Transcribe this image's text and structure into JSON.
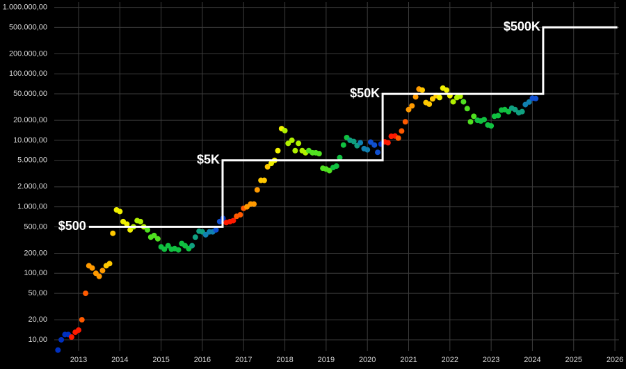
{
  "chart_data": {
    "type": "scatter",
    "log_y": true,
    "grid": true,
    "xlim": [
      2012.41,
      2026.1
    ],
    "ylim": [
      6.8,
      1200000
    ],
    "xticks": [
      2013,
      2014,
      2015,
      2016,
      2017,
      2018,
      2019,
      2020,
      2021,
      2022,
      2023,
      2024,
      2025,
      2026
    ],
    "yticks": [
      {
        "value": 10,
        "label": "10,00"
      },
      {
        "value": 20,
        "label": "20,00"
      },
      {
        "value": 50,
        "label": "50,00"
      },
      {
        "value": 100,
        "label": "100,00"
      },
      {
        "value": 200,
        "label": "200,00"
      },
      {
        "value": 500,
        "label": "500,00"
      },
      {
        "value": 1000,
        "label": "1.000,00"
      },
      {
        "value": 2000,
        "label": "2.000,00"
      },
      {
        "value": 5000,
        "label": "5.000,00"
      },
      {
        "value": 10000,
        "label": "10.000,00"
      },
      {
        "value": 20000,
        "label": "20.000,00"
      },
      {
        "value": 50000,
        "label": "50.000,00"
      },
      {
        "value": 100000,
        "label": "100.000,00"
      },
      {
        "value": 200000,
        "label": "200.000,00"
      },
      {
        "value": 500000,
        "label": "500.000,00"
      },
      {
        "value": 1000000,
        "label": "1.000.000,00"
      }
    ],
    "series": [
      {
        "x": [
          2012.5,
          2012.58,
          2012.67,
          2012.75,
          2012.83,
          2012.92,
          2013.0,
          2013.08,
          2013.17,
          2013.25,
          2013.33,
          2013.42,
          2013.5,
          2013.58,
          2013.67,
          2013.75,
          2013.83,
          2013.92,
          2014.0,
          2014.08,
          2014.17,
          2014.25,
          2014.33,
          2014.42,
          2014.5,
          2014.58,
          2014.67,
          2014.75,
          2014.83,
          2014.92,
          2015.0,
          2015.08,
          2015.17,
          2015.25,
          2015.33,
          2015.42,
          2015.5,
          2015.58,
          2015.67,
          2015.75,
          2015.83,
          2015.92,
          2016.0,
          2016.08,
          2016.17,
          2016.25,
          2016.33,
          2016.42,
          2016.5,
          2016.58,
          2016.67,
          2016.75,
          2016.83,
          2016.92,
          2017.0,
          2017.08,
          2017.17,
          2017.25,
          2017.33,
          2017.42,
          2017.5,
          2017.58,
          2017.67,
          2017.75,
          2017.83,
          2017.92,
          2018.0,
          2018.08,
          2018.17,
          2018.25,
          2018.33,
          2018.42,
          2018.5,
          2018.58,
          2018.67,
          2018.75,
          2018.83,
          2018.92,
          2019.0,
          2019.08,
          2019.17,
          2019.25,
          2019.33,
          2019.42,
          2019.5,
          2019.58,
          2019.67,
          2019.75,
          2019.83,
          2019.92,
          2020.0,
          2020.08,
          2020.17,
          2020.25,
          2020.33,
          2020.42,
          2020.5,
          2020.58,
          2020.67,
          2020.75,
          2020.83,
          2020.92,
          2021.0,
          2021.08,
          2021.17,
          2021.25,
          2021.33,
          2021.42,
          2021.5,
          2021.58,
          2021.67,
          2021.75,
          2021.83,
          2021.92,
          2022.0,
          2022.08,
          2022.17,
          2022.25,
          2022.33,
          2022.42,
          2022.5,
          2022.58,
          2022.67,
          2022.75,
          2022.83,
          2022.92,
          2023.0,
          2023.08,
          2023.17,
          2023.25,
          2023.33,
          2023.42,
          2023.5,
          2023.58,
          2023.67,
          2023.75,
          2023.83,
          2023.92,
          2024.0,
          2024.08
        ],
        "values": [
          7,
          10,
          12,
          12,
          11,
          13,
          14,
          20,
          50,
          130,
          120,
          100,
          90,
          110,
          130,
          140,
          400,
          900,
          850,
          600,
          550,
          450,
          500,
          620,
          600,
          500,
          450,
          350,
          370,
          330,
          250,
          230,
          260,
          230,
          235,
          225,
          280,
          260,
          235,
          260,
          350,
          430,
          420,
          380,
          420,
          420,
          450,
          600,
          670,
          580,
          600,
          620,
          720,
          760,
          950,
          1000,
          1100,
          1100,
          1800,
          2500,
          2500,
          4000,
          4500,
          5000,
          7000,
          15000,
          14000,
          9000,
          10000,
          7000,
          9000,
          7000,
          6500,
          7000,
          6500,
          6500,
          6300,
          3800,
          3700,
          3500,
          3900,
          4100,
          5500,
          8500,
          11000,
          10000,
          9600,
          8300,
          9200,
          7500,
          7200,
          9400,
          8500,
          6600,
          8800,
          9500,
          9200,
          11500,
          11600,
          10800,
          13800,
          19000,
          29000,
          33000,
          45000,
          59000,
          57000,
          37000,
          35000,
          42000,
          47000,
          44000,
          61000,
          57000,
          47000,
          38000,
          44000,
          46000,
          38000,
          30000,
          19000,
          23000,
          20000,
          19500,
          20500,
          17000,
          16500,
          23000,
          23500,
          28500,
          29000,
          27000,
          30500,
          29000,
          26000,
          27000,
          34500,
          37700,
          43000,
          42500
        ],
        "colors": [
          "#0030c0",
          "#0030c0",
          "#0030c0",
          "#0030c0",
          "#ff1a00",
          "#ff1a00",
          "#ff1a00",
          "#ff5a00",
          "#ff5a00",
          "#ff9a00",
          "#ff9a00",
          "#ff9a00",
          "#ff9a00",
          "#ff9a00",
          "#ffc800",
          "#ffc800",
          "#ffc800",
          "#f0f000",
          "#f0f000",
          "#f0f000",
          "#f0f000",
          "#f0f000",
          "#b0f000",
          "#b0f000",
          "#b0f000",
          "#b0f000",
          "#50e020",
          "#50e020",
          "#50e020",
          "#50e020",
          "#10c040",
          "#10c040",
          "#10c040",
          "#10c040",
          "#10c040",
          "#10c040",
          "#10c040",
          "#10c040",
          "#10c040",
          "#10a080",
          "#10a080",
          "#10a080",
          "#10a080",
          "#1080b0",
          "#1080b0",
          "#1080b0",
          "#1050d0",
          "#1050d0",
          "#0030c0",
          "#ff1a00",
          "#ff1a00",
          "#ff1a00",
          "#ff5a00",
          "#ff5a00",
          "#ff5a00",
          "#ff9a00",
          "#ff9a00",
          "#ff9a00",
          "#ff9a00",
          "#ffc800",
          "#ffc800",
          "#ffc800",
          "#f0f000",
          "#f0f000",
          "#f0f000",
          "#f0f000",
          "#b0f000",
          "#b0f000",
          "#b0f000",
          "#b0f000",
          "#b0f000",
          "#b0f000",
          "#b0f000",
          "#50e020",
          "#50e020",
          "#50e020",
          "#50e020",
          "#50e020",
          "#50e020",
          "#50e020",
          "#10c040",
          "#10c040",
          "#10c040",
          "#10c040",
          "#10c040",
          "#10a080",
          "#10a080",
          "#10a080",
          "#1080b0",
          "#1080b0",
          "#1080b0",
          "#1050d0",
          "#1050d0",
          "#1050d0",
          "#0030c0",
          "#ff1a00",
          "#ff1a00",
          "#ff1a00",
          "#ff1a00",
          "#ff5a00",
          "#ff5a00",
          "#ff5a00",
          "#ff9a00",
          "#ff9a00",
          "#ff9a00",
          "#ff9a00",
          "#ffc800",
          "#ffc800",
          "#ffc800",
          "#ffc800",
          "#ffc800",
          "#f0f000",
          "#f0f000",
          "#f0f000",
          "#f0f000",
          "#b0f000",
          "#b0f000",
          "#b0f000",
          "#50e020",
          "#50e020",
          "#50e020",
          "#50e020",
          "#10c040",
          "#10c040",
          "#10c040",
          "#10c040",
          "#10c040",
          "#10c040",
          "#10c040",
          "#10c040",
          "#10c040",
          "#10c040",
          "#10a080",
          "#10a080",
          "#10a080",
          "#10a080",
          "#1080b0",
          "#1080b0",
          "#1050d0",
          "#1050d0"
        ]
      }
    ],
    "step": {
      "color": "#ffffff",
      "x": [
        2013.25,
        2016.49,
        2016.49,
        2020.37,
        2020.37,
        2024.26,
        2024.26,
        2026.06
      ],
      "values": [
        500,
        500,
        5000,
        5000,
        50000,
        50000,
        500000,
        500000
      ],
      "annotations": [
        "$500",
        "$5K",
        "$50K",
        "$500K"
      ]
    }
  }
}
